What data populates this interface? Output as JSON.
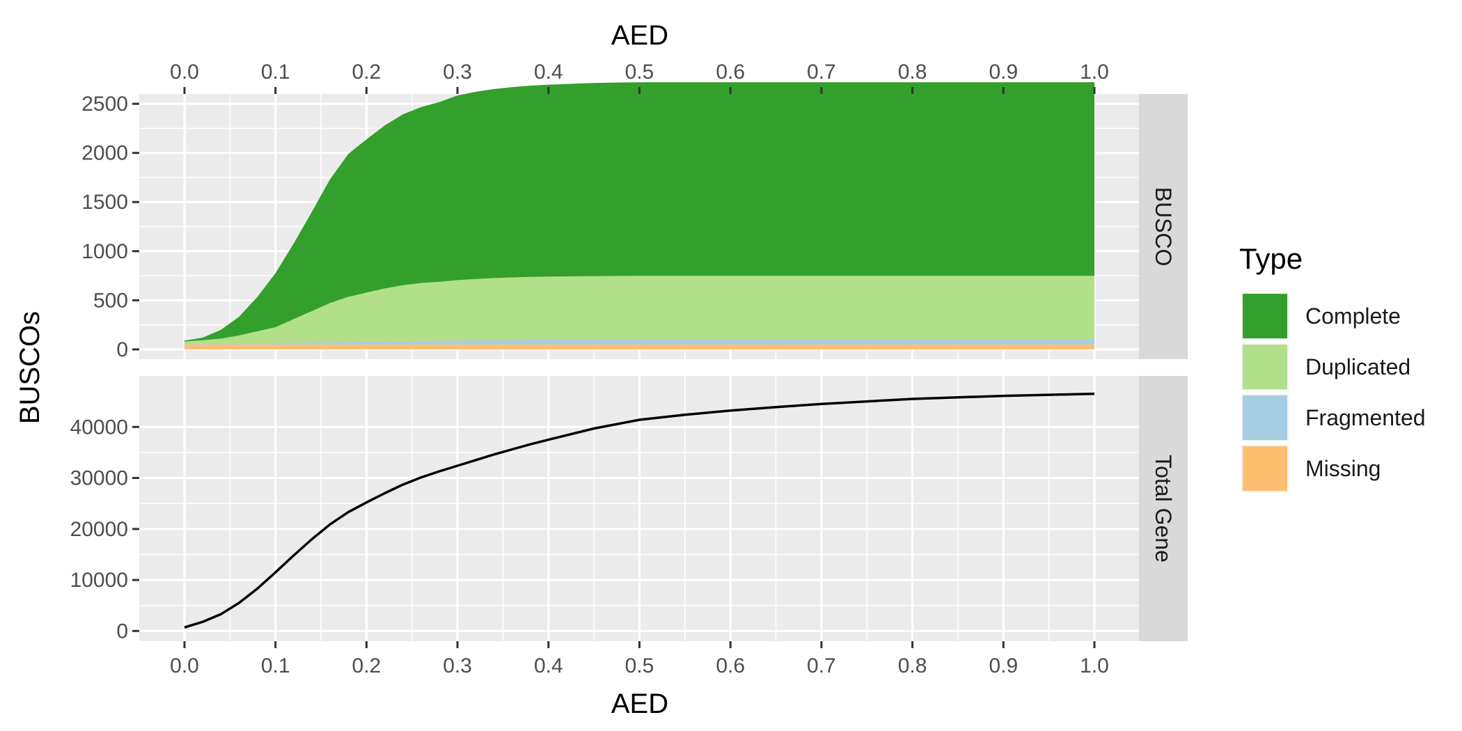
{
  "chart_data": {
    "type": "area",
    "x_title_top": "AED",
    "x_title_bottom": "AED",
    "y_title": "BUSCOs",
    "xlim": [
      0,
      1
    ],
    "x_ticks": [
      0.0,
      0.1,
      0.2,
      0.3,
      0.4,
      0.5,
      0.6,
      0.7,
      0.8,
      0.9,
      1.0
    ],
    "x_tick_labels": [
      "0.0",
      "0.1",
      "0.2",
      "0.3",
      "0.4",
      "0.5",
      "0.6",
      "0.7",
      "0.8",
      "0.9",
      "1.0"
    ],
    "grid": true,
    "legend_position": "right",
    "legend": {
      "title": "Type",
      "items": [
        {
          "label": "Complete",
          "color": "#33a02c"
        },
        {
          "label": "Duplicated",
          "color": "#b2df8a"
        },
        {
          "label": "Fragmented",
          "color": "#a6cee3"
        },
        {
          "label": "Missing",
          "color": "#fdbf6f"
        }
      ]
    },
    "x": [
      0.0,
      0.02,
      0.04,
      0.06,
      0.08,
      0.1,
      0.12,
      0.14,
      0.16,
      0.18,
      0.2,
      0.22,
      0.24,
      0.26,
      0.28,
      0.3,
      0.32,
      0.34,
      0.36,
      0.38,
      0.4,
      0.45,
      0.5,
      0.55,
      0.6,
      0.65,
      0.7,
      0.75,
      0.8,
      0.85,
      0.9,
      0.95,
      1.0
    ],
    "panels": [
      {
        "strip_label": "BUSCO",
        "type": "stacked_area",
        "ylim": [
          -100,
          2600
        ],
        "y_ticks": [
          0,
          500,
          1000,
          1500,
          2000,
          2500
        ],
        "y_tick_labels": [
          "0",
          "500",
          "1000",
          "1500",
          "2000",
          "2500"
        ],
        "series": [
          {
            "name": "Missing",
            "color": "#fdbf6f",
            "values": [
              50,
              50,
              50,
              50,
              50,
              50,
              50,
              50,
              50,
              50,
              50,
              50,
              50,
              50,
              50,
              50,
              50,
              50,
              50,
              50,
              50,
              50,
              50,
              50,
              50,
              50,
              50,
              50,
              50,
              50,
              50,
              50,
              50
            ]
          },
          {
            "name": "Fragmented",
            "color": "#a6cee3",
            "values": [
              5,
              8,
              10,
              12,
              14,
              16,
              18,
              20,
              22,
              25,
              28,
              30,
              33,
              36,
              38,
              40,
              42,
              44,
              45,
              46,
              47,
              48,
              48,
              48,
              48,
              48,
              48,
              48,
              48,
              48,
              48,
              48,
              48
            ]
          },
          {
            "name": "Duplicated",
            "color": "#b2df8a",
            "values": [
              25,
              35,
              50,
              80,
              120,
              160,
              240,
              320,
              400,
              460,
              500,
              540,
              570,
              590,
              600,
              615,
              625,
              632,
              638,
              642,
              645,
              648,
              650,
              650,
              650,
              650,
              650,
              650,
              650,
              650,
              650,
              650,
              650
            ]
          },
          {
            "name": "Complete",
            "color": "#33a02c",
            "values": [
              10,
              27,
              90,
              190,
              350,
              550,
              770,
              1010,
              1260,
              1455,
              1560,
              1660,
              1740,
              1790,
              1830,
              1880,
              1905,
              1924,
              1937,
              1947,
              1953,
              1967,
              1972,
              1972,
              1972,
              1972,
              1972,
              1972,
              1972,
              1972,
              1972,
              1972,
              1972
            ]
          }
        ]
      },
      {
        "strip_label": "Total Gene",
        "type": "line",
        "ylim": [
          -2000,
          50000
        ],
        "y_ticks": [
          0,
          10000,
          20000,
          30000,
          40000
        ],
        "y_tick_labels": [
          "0",
          "10000",
          "20000",
          "30000",
          "40000"
        ],
        "series": [
          {
            "name": "Total Gene",
            "color": "#000000",
            "values": [
              700,
              1800,
              3300,
              5500,
              8300,
              11500,
              14800,
              18000,
              20900,
              23300,
              25200,
              27000,
              28700,
              30100,
              31300,
              32400,
              33500,
              34600,
              35600,
              36600,
              37500,
              39700,
              41400,
              42400,
              43200,
              43900,
              44500,
              45000,
              45500,
              45800,
              46100,
              46300,
              46500
            ]
          }
        ]
      }
    ]
  }
}
